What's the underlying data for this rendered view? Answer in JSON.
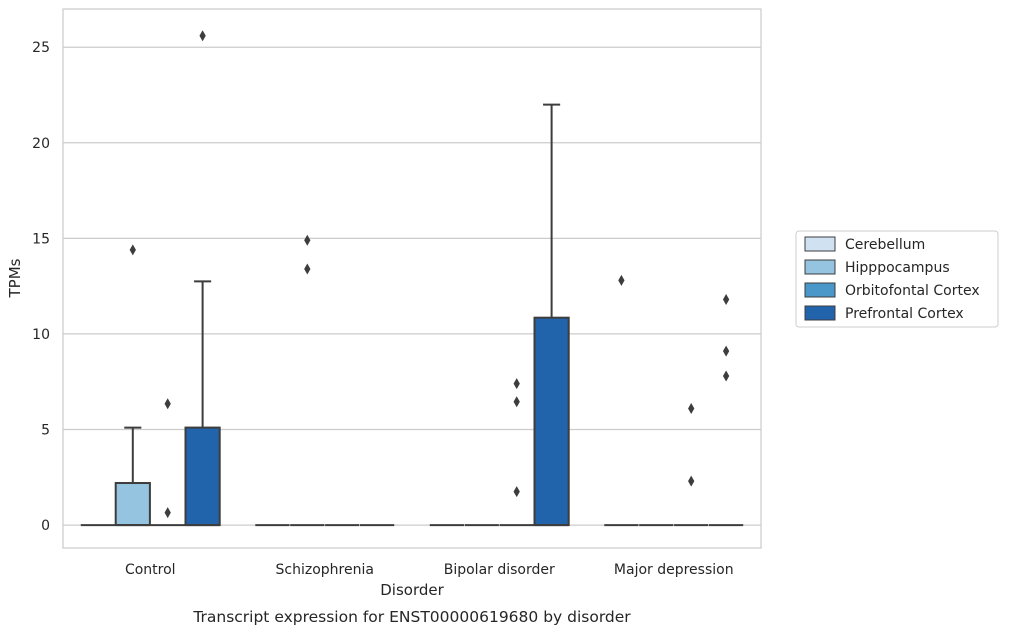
{
  "chart_data": {
    "type": "box",
    "title": "",
    "caption": "Transcript expression for ENST00000619680 by disorder",
    "xlabel": "Disorder",
    "ylabel": "TPMs",
    "ylim": [
      -1.2,
      27
    ],
    "yticks": [
      0,
      5,
      10,
      15,
      20,
      25
    ],
    "grid": "horizontal",
    "legend_position": "right",
    "categories": [
      "Control",
      "Schizophrenia",
      "Bipolar disorder",
      "Major depression"
    ],
    "series": [
      {
        "name": "Cerebellum",
        "color": "#d0e1f2",
        "boxes": [
          {
            "q1": 0,
            "median": 0,
            "q3": 0,
            "whisker_low": 0,
            "whisker_high": 0,
            "outliers": []
          },
          {
            "q1": 0,
            "median": 0,
            "q3": 0,
            "whisker_low": 0,
            "whisker_high": 0,
            "outliers": []
          },
          {
            "q1": 0,
            "median": 0,
            "q3": 0,
            "whisker_low": 0,
            "whisker_high": 0,
            "outliers": []
          },
          {
            "q1": 0,
            "median": 0,
            "q3": 0,
            "whisker_low": 0,
            "whisker_high": 0,
            "outliers": [
              12.8
            ]
          }
        ]
      },
      {
        "name": "Hipppocampus",
        "color": "#94c4df",
        "boxes": [
          {
            "q1": 0,
            "median": 0,
            "q3": 2.2,
            "whisker_low": 0,
            "whisker_high": 5.1,
            "outliers": [
              14.4
            ]
          },
          {
            "q1": 0,
            "median": 0,
            "q3": 0,
            "whisker_low": 0,
            "whisker_high": 0,
            "outliers": [
              14.9,
              13.4
            ]
          },
          {
            "q1": 0,
            "median": 0,
            "q3": 0,
            "whisker_low": 0,
            "whisker_high": 0,
            "outliers": []
          },
          {
            "q1": 0,
            "median": 0,
            "q3": 0,
            "whisker_low": 0,
            "whisker_high": 0,
            "outliers": []
          }
        ]
      },
      {
        "name": "Orbitofontal Cortex",
        "color": "#4a98c9",
        "boxes": [
          {
            "q1": 0,
            "median": 0,
            "q3": 0,
            "whisker_low": 0,
            "whisker_high": 0,
            "outliers": [
              6.35,
              0.65
            ]
          },
          {
            "q1": 0,
            "median": 0,
            "q3": 0,
            "whisker_low": 0,
            "whisker_high": 0,
            "outliers": []
          },
          {
            "q1": 0,
            "median": 0,
            "q3": 0,
            "whisker_low": 0,
            "whisker_high": 0,
            "outliers": [
              7.4,
              6.45,
              1.75
            ]
          },
          {
            "q1": 0,
            "median": 0,
            "q3": 0,
            "whisker_low": 0,
            "whisker_high": 0,
            "outliers": [
              6.1,
              2.3
            ]
          }
        ]
      },
      {
        "name": "Prefrontal Cortex",
        "color": "#2164ab",
        "boxes": [
          {
            "q1": 0,
            "median": 0,
            "q3": 5.1,
            "whisker_low": 0,
            "whisker_high": 12.75,
            "outliers": [
              25.6
            ]
          },
          {
            "q1": 0,
            "median": 0,
            "q3": 0,
            "whisker_low": 0,
            "whisker_high": 0,
            "outliers": []
          },
          {
            "q1": 0,
            "median": 0,
            "q3": 10.85,
            "whisker_low": 0,
            "whisker_high": 22.0,
            "outliers": []
          },
          {
            "q1": 0,
            "median": 0,
            "q3": 0,
            "whisker_low": 0,
            "whisker_high": 0,
            "outliers": [
              11.8,
              9.1,
              7.8
            ]
          }
        ]
      }
    ]
  }
}
